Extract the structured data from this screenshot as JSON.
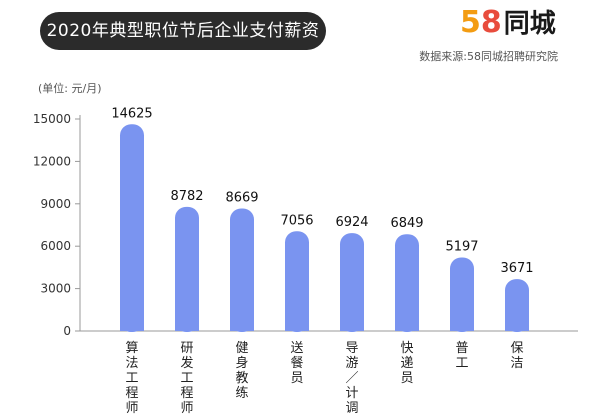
{
  "header": {
    "title": "2020年典型职位节后企业支付薪资",
    "logo_digit_5": "5",
    "logo_digit_8": "8",
    "logo_text": "同城",
    "source": "数据来源:58同城招聘研究院"
  },
  "colors": {
    "bar": "#7a94f0",
    "title_bg": "#2b2b2b",
    "axis": "#999999",
    "logo_5": "#f39c12",
    "logo_8": "#e84c3d"
  },
  "chart_data": {
    "type": "bar",
    "unit_label": "(单位: 元/月)",
    "categories": [
      "算法工程师",
      "研发工程师",
      "健身教练",
      "送餐员",
      "导游/计调",
      "快递员",
      "普工",
      "保洁"
    ],
    "category_display": [
      "算法工程师",
      "研发工程师",
      "健身教练",
      "送餐员",
      "导游／计调",
      "快递员",
      "普工",
      "保洁"
    ],
    "values": [
      14625,
      8782,
      8669,
      7056,
      6924,
      6849,
      5197,
      3671
    ],
    "yticks": [
      0,
      3000,
      6000,
      9000,
      12000,
      15000
    ],
    "ylim": [
      0,
      15000
    ],
    "grid": false
  }
}
